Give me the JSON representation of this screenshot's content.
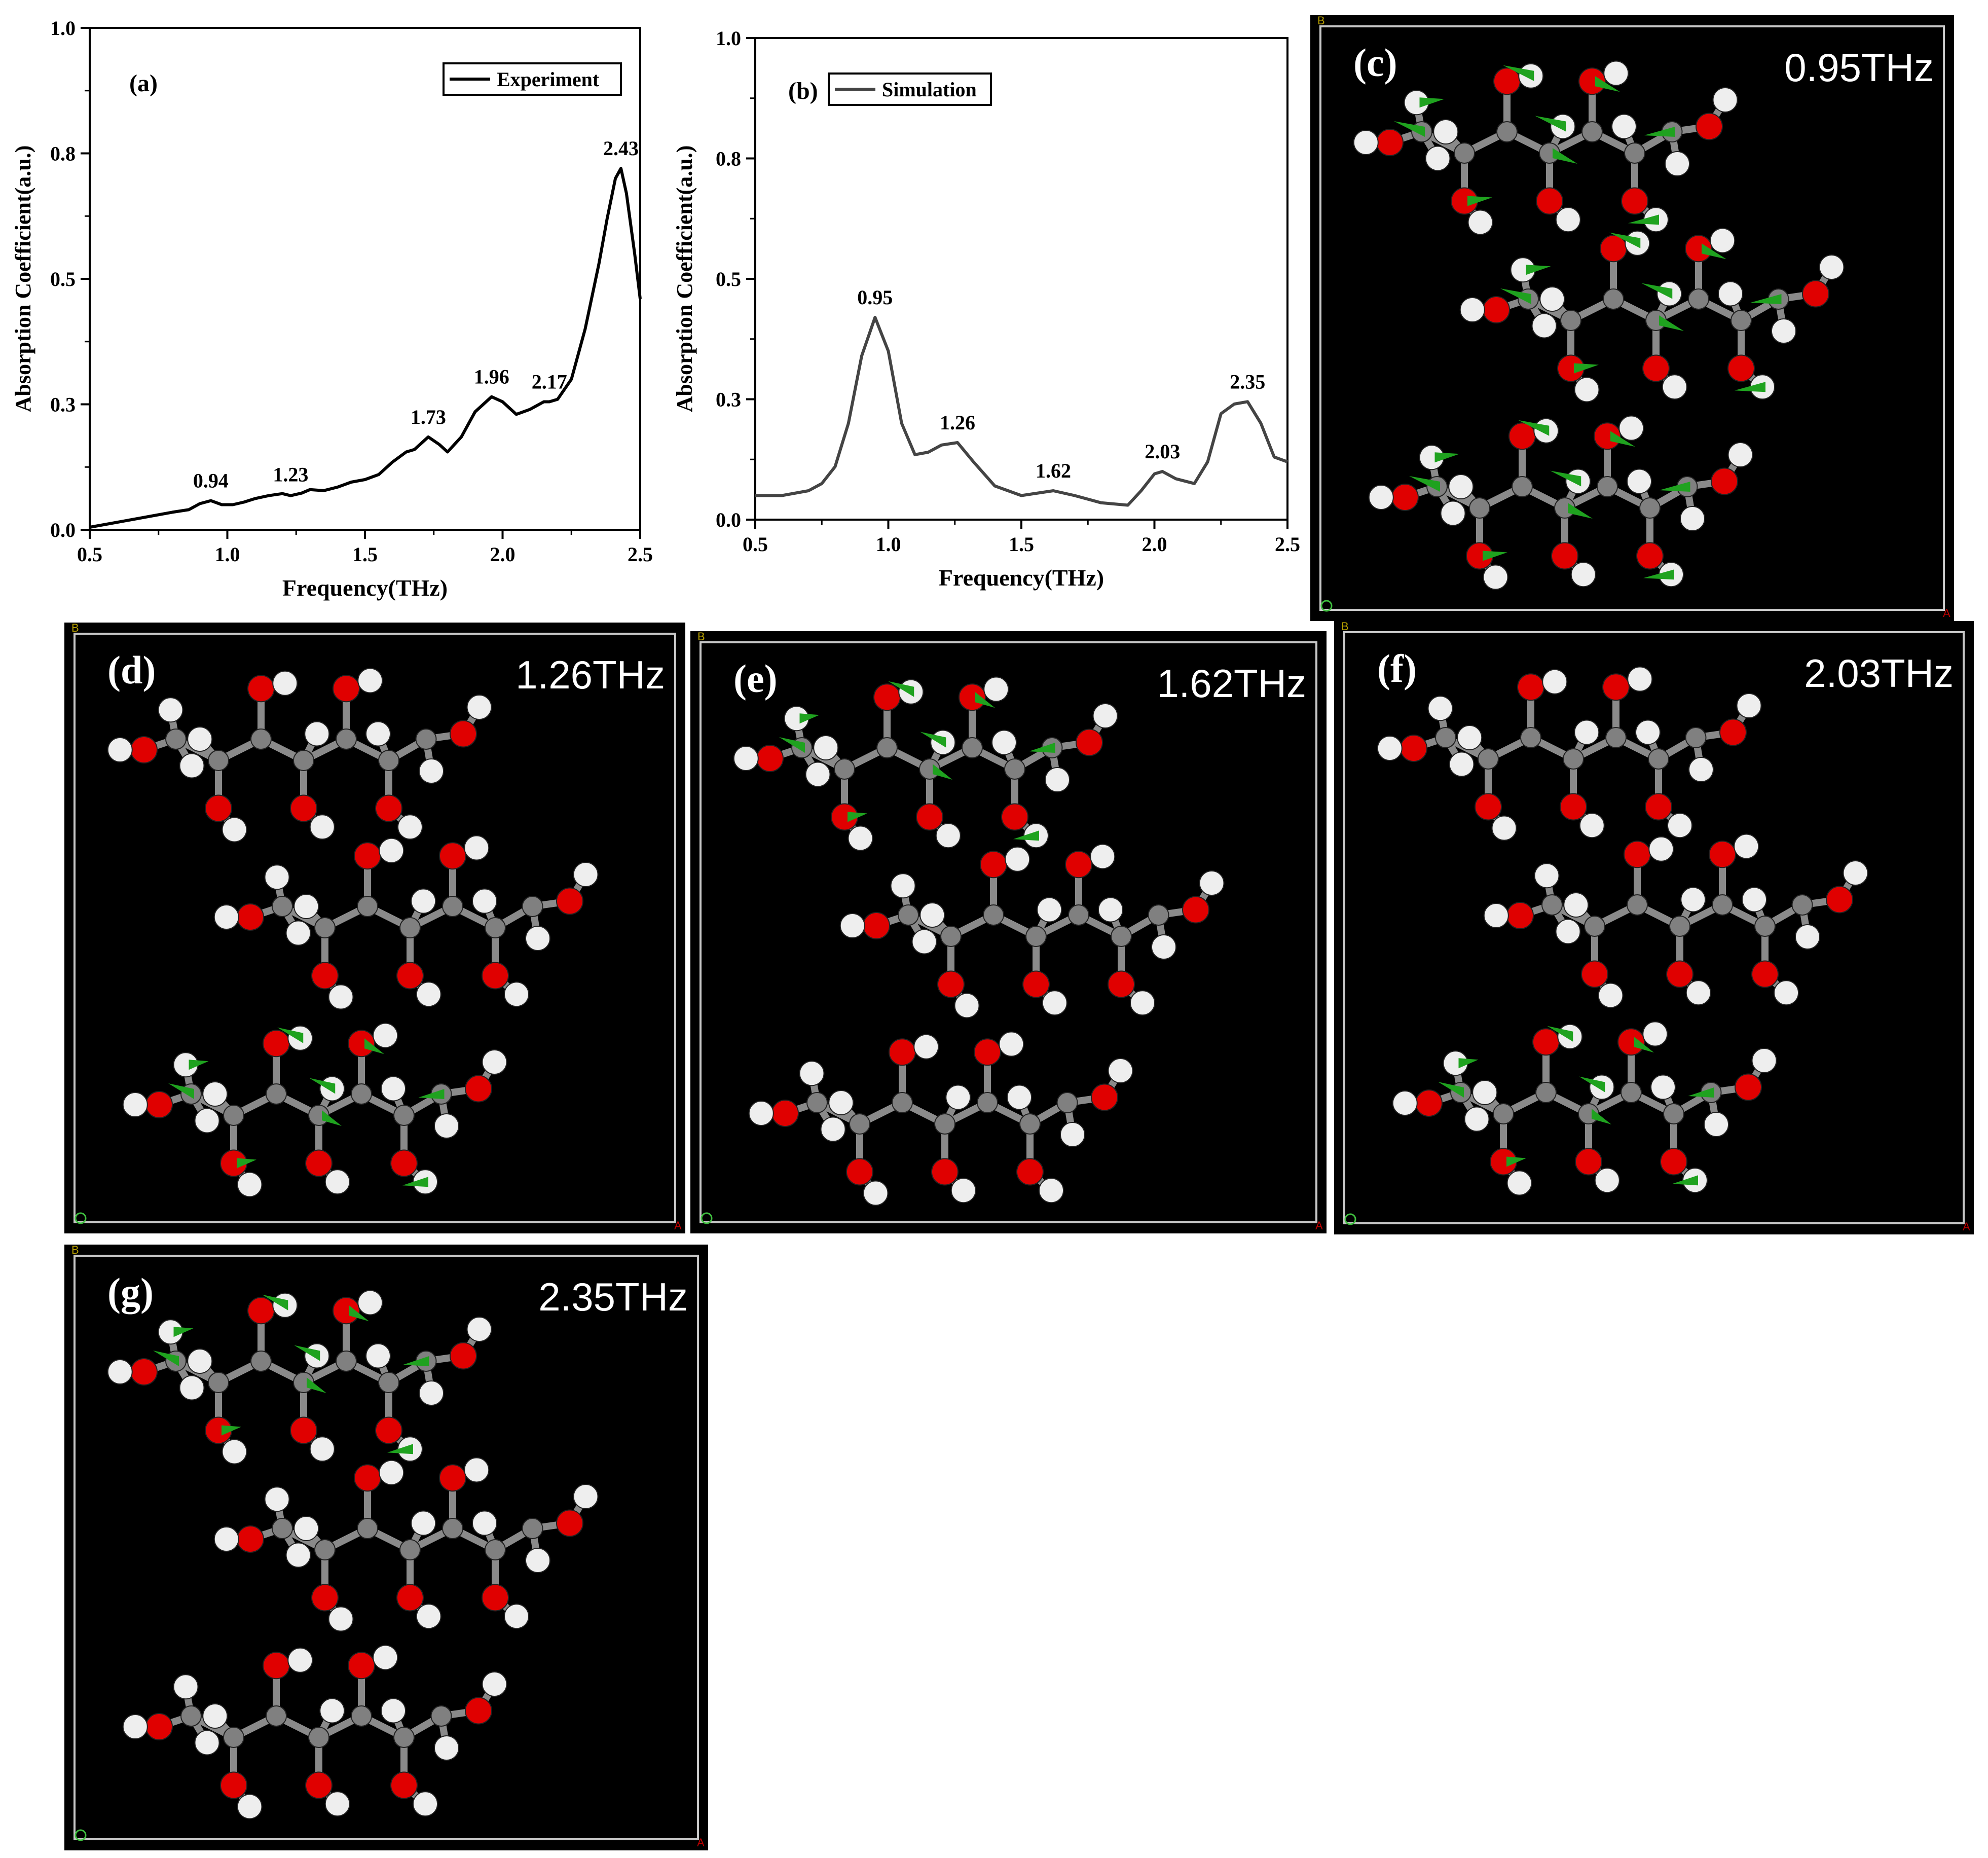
{
  "colors": {
    "experiment_line": "#000000",
    "simulation_line": "#444444",
    "oxygen": "#e00000",
    "hydrogen": "#eeeeee",
    "carbon": "#808080",
    "vector": "#1fa21f",
    "panel_bg": "#000000",
    "panel_frame": "#c8c8c8",
    "axis_marker": "#b8a000"
  },
  "chart_data": [
    {
      "type": "line",
      "panel_label": "(a)",
      "legend": "Experiment",
      "legend_position": "top-right",
      "xlabel": "Frequency(THz)",
      "ylabel": "Absorption Coefficient(a.u.)",
      "xlim": [
        0.5,
        2.5
      ],
      "ylim": [
        0,
        1.0
      ],
      "xticks": [
        "0.5",
        "1.0",
        "1.5",
        "2.0",
        "2.5"
      ],
      "yticks": [
        "0.0",
        "0.3",
        "0.5",
        "0.8",
        "1.0"
      ],
      "ytick_values": [
        0,
        0.25,
        0.5,
        0.75,
        1.0
      ],
      "series": [
        {
          "name": "Experiment",
          "x": [
            0.5,
            0.6,
            0.7,
            0.8,
            0.86,
            0.9,
            0.94,
            0.98,
            1.02,
            1.06,
            1.1,
            1.15,
            1.2,
            1.23,
            1.27,
            1.3,
            1.35,
            1.4,
            1.45,
            1.5,
            1.55,
            1.6,
            1.65,
            1.68,
            1.73,
            1.77,
            1.8,
            1.85,
            1.9,
            1.96,
            2.0,
            2.05,
            2.1,
            2.15,
            2.17,
            2.2,
            2.25,
            2.3,
            2.35,
            2.38,
            2.41,
            2.43,
            2.45,
            2.48,
            2.5
          ],
          "y": [
            0.005,
            0.015,
            0.025,
            0.035,
            0.04,
            0.052,
            0.058,
            0.05,
            0.05,
            0.055,
            0.062,
            0.068,
            0.072,
            0.068,
            0.073,
            0.08,
            0.078,
            0.085,
            0.095,
            0.1,
            0.11,
            0.135,
            0.155,
            0.16,
            0.185,
            0.17,
            0.155,
            0.185,
            0.235,
            0.265,
            0.255,
            0.23,
            0.24,
            0.255,
            0.255,
            0.26,
            0.3,
            0.4,
            0.53,
            0.62,
            0.7,
            0.72,
            0.67,
            0.55,
            0.46
          ]
        }
      ],
      "annotations": [
        {
          "text": "0.94",
          "x": 0.94,
          "y": 0.058
        },
        {
          "text": "1.23",
          "x": 1.23,
          "y": 0.07
        },
        {
          "text": "1.73",
          "x": 1.73,
          "y": 0.185
        },
        {
          "text": "1.96",
          "x": 1.96,
          "y": 0.265
        },
        {
          "text": "2.17",
          "x": 2.17,
          "y": 0.255
        },
        {
          "text": "2.43",
          "x": 2.43,
          "y": 0.72
        }
      ]
    },
    {
      "type": "line",
      "panel_label": "(b)",
      "legend": "Simulation",
      "legend_position": "top-left",
      "xlabel": "Frequency(THz)",
      "ylabel": "Absorption Coefficient(a.u.)",
      "xlim": [
        0.5,
        2.5
      ],
      "ylim": [
        0,
        1.0
      ],
      "xticks": [
        "0.5",
        "1.0",
        "1.5",
        "2.0",
        "2.5"
      ],
      "yticks": [
        "0.0",
        "0.3",
        "0.5",
        "0.8",
        "1.0"
      ],
      "ytick_values": [
        0,
        0.25,
        0.5,
        0.75,
        1.0
      ],
      "series": [
        {
          "name": "Simulation",
          "x": [
            0.5,
            0.6,
            0.7,
            0.75,
            0.8,
            0.85,
            0.9,
            0.95,
            1.0,
            1.05,
            1.1,
            1.15,
            1.2,
            1.26,
            1.32,
            1.4,
            1.5,
            1.62,
            1.7,
            1.8,
            1.9,
            1.95,
            2.0,
            2.03,
            2.08,
            2.15,
            2.2,
            2.25,
            2.3,
            2.35,
            2.4,
            2.45,
            2.5
          ],
          "y": [
            0.05,
            0.05,
            0.06,
            0.075,
            0.11,
            0.2,
            0.34,
            0.42,
            0.35,
            0.2,
            0.135,
            0.14,
            0.155,
            0.16,
            0.12,
            0.07,
            0.05,
            0.06,
            0.05,
            0.035,
            0.03,
            0.06,
            0.095,
            0.1,
            0.085,
            0.075,
            0.12,
            0.22,
            0.24,
            0.245,
            0.2,
            0.13,
            0.12
          ]
        }
      ],
      "annotations": [
        {
          "text": "0.95",
          "x": 0.95,
          "y": 0.42
        },
        {
          "text": "1.26",
          "x": 1.26,
          "y": 0.16
        },
        {
          "text": "1.62",
          "x": 1.62,
          "y": 0.06
        },
        {
          "text": "2.03",
          "x": 2.03,
          "y": 0.1
        },
        {
          "text": "2.35",
          "x": 2.35,
          "y": 0.245
        }
      ]
    }
  ],
  "panels": [
    {
      "label": "(c)",
      "freq": "0.95THz",
      "vectors": "strong"
    },
    {
      "label": "(d)",
      "freq": "1.26THz",
      "vectors": "lower"
    },
    {
      "label": "(e)",
      "freq": "1.62THz",
      "vectors": "upper"
    },
    {
      "label": "(f)",
      "freq": "2.03THz",
      "vectors": "lower"
    },
    {
      "label": "(g)",
      "freq": "2.35THz",
      "vectors": "upper"
    }
  ],
  "axis_markers": {
    "b": "B",
    "a": "A"
  }
}
